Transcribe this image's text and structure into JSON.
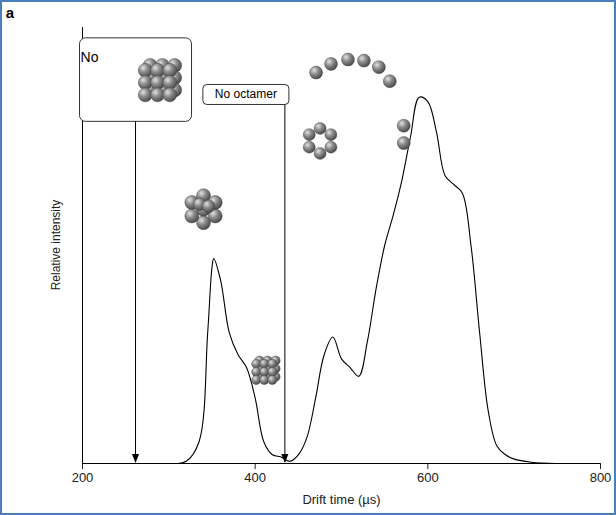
{
  "chart_data": {
    "type": "line",
    "panel_label": "a",
    "xlabel": "Drift time (µs)",
    "ylabel": "Relative intensity",
    "x": [
      300,
      320,
      335,
      345,
      350,
      352,
      360,
      370,
      380,
      390,
      400,
      410,
      420,
      430,
      440,
      450,
      460,
      470,
      480,
      490,
      500,
      510,
      520,
      530,
      540,
      550,
      560,
      570,
      580,
      590,
      600,
      610,
      620,
      630,
      640,
      650,
      660,
      670,
      680,
      690,
      700,
      720,
      750,
      800
    ],
    "values": [
      0,
      0.005,
      0.05,
      0.3,
      0.45,
      0.47,
      0.42,
      0.3,
      0.25,
      0.22,
      0.15,
      0.05,
      0.02,
      0.015,
      0.005,
      0.02,
      0.06,
      0.15,
      0.25,
      0.29,
      0.24,
      0.22,
      0.2,
      0.28,
      0.4,
      0.5,
      0.57,
      0.65,
      0.75,
      0.84,
      0.83,
      0.76,
      0.66,
      0.64,
      0.62,
      0.5,
      0.3,
      0.12,
      0.04,
      0.02,
      0.01,
      0.003,
      0,
      0
    ],
    "color": "#000000",
    "xlim": [
      200,
      800
    ],
    "xticks": [
      200,
      400,
      600,
      800
    ],
    "ylim": [
      0,
      1
    ],
    "yticks": [],
    "tick_labels": "x",
    "annotations": [
      {
        "text": "No",
        "x": 262
      },
      {
        "text": "No octamer",
        "x": 435
      }
    ]
  }
}
